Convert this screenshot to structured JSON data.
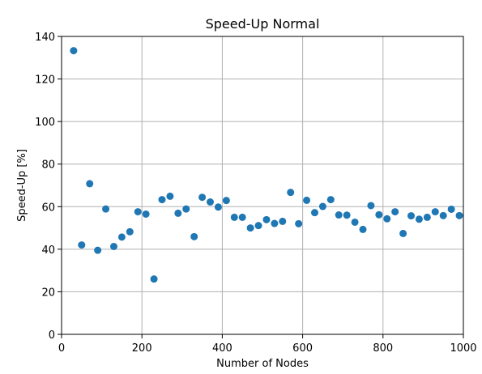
{
  "chart_data": {
    "type": "scatter",
    "title": "Speed-Up Normal",
    "xlabel": "Number of Nodes",
    "ylabel": "Speed-Up [%]",
    "xlim": [
      0,
      1000
    ],
    "ylim": [
      0,
      140
    ],
    "x_ticks": [
      0,
      200,
      400,
      600,
      800,
      1000
    ],
    "y_ticks": [
      0,
      20,
      40,
      60,
      80,
      100,
      120,
      140
    ],
    "grid": true,
    "marker_color": "#1f77b4",
    "series": [
      {
        "x": [
          30,
          50,
          70,
          90,
          110,
          130,
          150,
          170,
          190,
          210,
          230,
          250,
          270,
          290,
          310,
          330,
          350,
          370,
          390,
          410,
          430,
          450,
          470,
          490,
          510,
          530,
          550,
          570,
          590,
          610,
          630,
          650,
          670,
          690,
          710,
          730,
          750,
          770,
          790,
          810,
          830,
          850,
          870,
          890,
          910,
          930,
          950,
          970,
          990
        ],
        "y": [
          133.3,
          42.0,
          70.8,
          39.5,
          58.9,
          41.3,
          45.7,
          48.2,
          57.6,
          56.5,
          26.0,
          63.3,
          64.9,
          56.9,
          58.9,
          45.9,
          64.4,
          62.2,
          59.8,
          62.9,
          55.0,
          55.0,
          50.0,
          51.1,
          53.9,
          52.1,
          53.1,
          66.7,
          52.0,
          63.0,
          57.2,
          60.1,
          63.3,
          56.1,
          56.0,
          52.7,
          49.3,
          60.5,
          56.2,
          54.3,
          57.6,
          47.4,
          55.7,
          54.1,
          55.0,
          57.6,
          55.8,
          58.8,
          55.8
        ]
      }
    ]
  }
}
